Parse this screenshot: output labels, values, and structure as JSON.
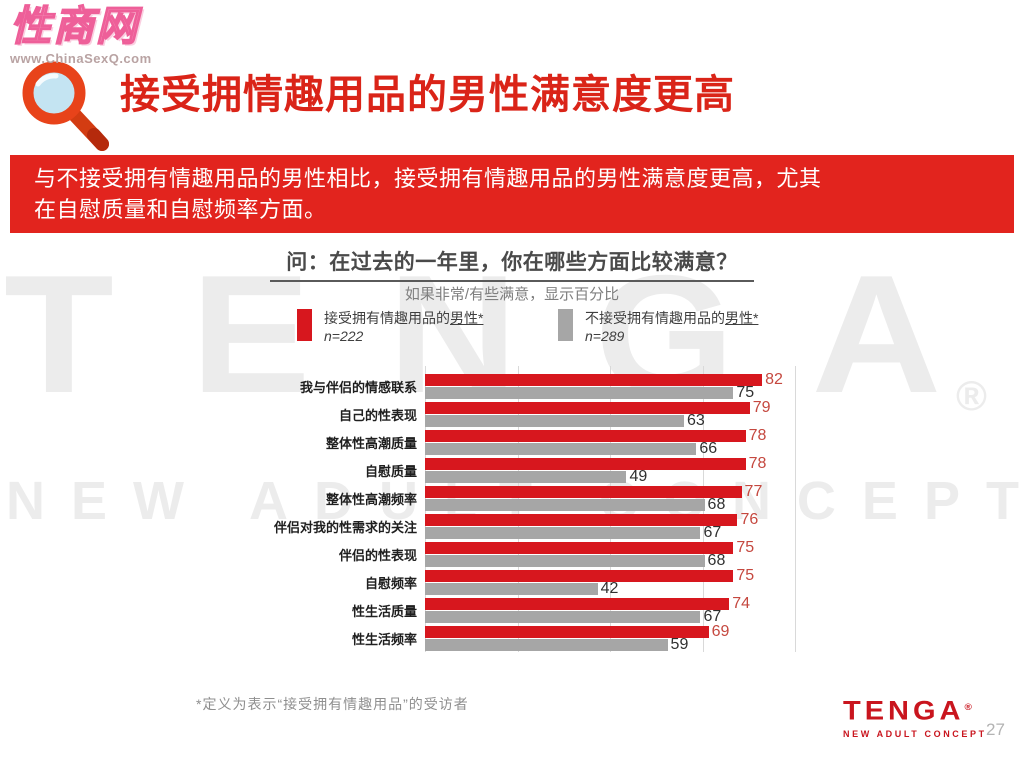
{
  "header": {
    "site_logo": "性商网",
    "site_url": "www.ChinaSexQ.com",
    "title": "接受拥情趣用品的男性满意度更高"
  },
  "banner": {
    "line1": "与不接受拥有情趣用品的男性相比，接受拥有情趣用品的男性满意度更高，尤其",
    "line2": "在自慰质量和自慰频率方面。"
  },
  "watermark": {
    "brand": "TENGA",
    "reg": "®",
    "tagline": "NEW ADULT CONCEPT"
  },
  "chart_data": {
    "type": "bar",
    "orientation": "horizontal",
    "title": "问：在过去的一年里，你在哪些方面比较满意？",
    "subtitle": "如果非常/有些满意，显示百分比",
    "categories": [
      "我与伴侣的情感联系",
      "自己的性表现",
      "整体性高潮质量",
      "自慰质量",
      "整体性高潮频率",
      "伴侣对我的性需求的关注",
      "伴侣的性表现",
      "自慰频率",
      "性生活质量",
      "性生活频率"
    ],
    "series": [
      {
        "name_prefix": "接受拥有情趣用品的",
        "name_underlined": "男性*",
        "n": "n=222",
        "color": "#d7171e",
        "label_color": "#c5483f",
        "values": [
          82,
          79,
          78,
          78,
          77,
          76,
          75,
          75,
          74,
          69
        ]
      },
      {
        "name_prefix": "不接受拥有情趣用品的",
        "name_underlined": "男性*",
        "n": "n=289",
        "color": "#a6a6a6",
        "label_color": "#303030",
        "values": [
          75,
          63,
          66,
          49,
          68,
          67,
          68,
          42,
          67,
          59
        ]
      }
    ],
    "xlim": [
      0,
      90
    ],
    "gridlines": [
      0,
      22.5,
      45,
      67.5,
      90
    ],
    "values_shown_as": "percent",
    "legend_position": "top",
    "grid": "vertical-only"
  },
  "footnote": "*定义为表示“接受拥有情趣用品”的受访者",
  "footer": {
    "brand": "TENGA",
    "reg": "®",
    "tagline": "NEW ADULT CONCEPT",
    "page": "27"
  },
  "colors": {
    "title_red": "#da2418",
    "banner_red": "#e2241e",
    "bar_red": "#d7171e",
    "bar_gray": "#a6a6a6",
    "watermark_gray": "#ececec",
    "logo_pink": "#f7a8c6",
    "tenga_red": "#c9151e"
  }
}
